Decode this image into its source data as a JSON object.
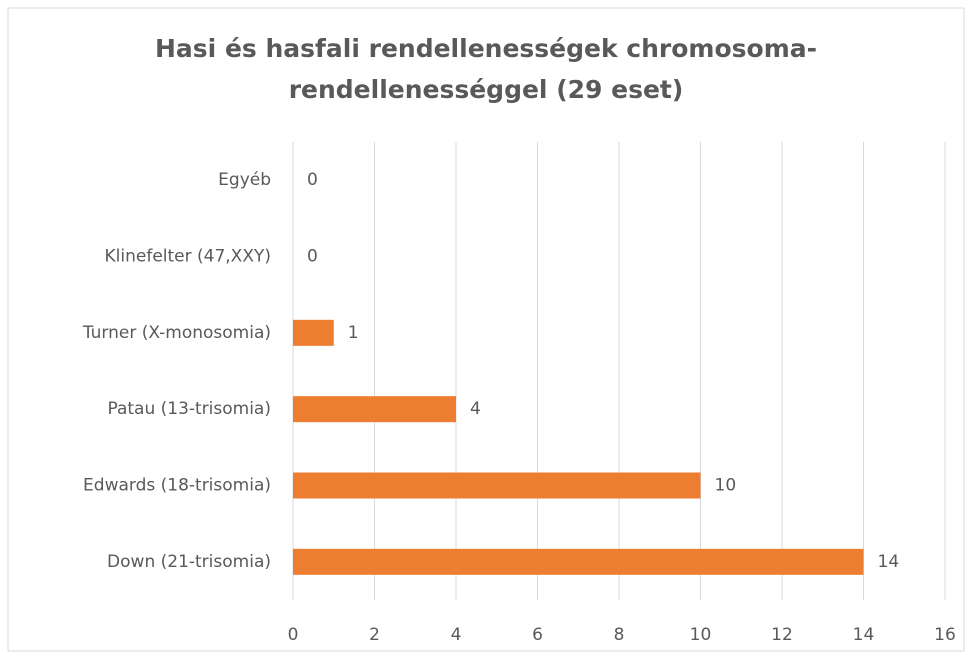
{
  "chart_data": {
    "type": "bar",
    "orientation": "horizontal",
    "title": [
      "Hasi és hasfali rendellenességek chromosoma-",
      "rendellenességgel  (29 eset)"
    ],
    "categories": [
      "Egyéb",
      "Klinefelter (47,XXY)",
      "Turner (X-monosomia)",
      "Patau (13-trisomia)",
      "Edwards (18-trisomia)",
      "Down (21-trisomia)"
    ],
    "values": [
      0,
      0,
      1,
      4,
      10,
      14
    ],
    "color": "#ed7d31",
    "xlim": [
      0,
      16
    ],
    "xticks": [
      0,
      2,
      4,
      6,
      8,
      10,
      12,
      14,
      16
    ],
    "grid": true
  }
}
